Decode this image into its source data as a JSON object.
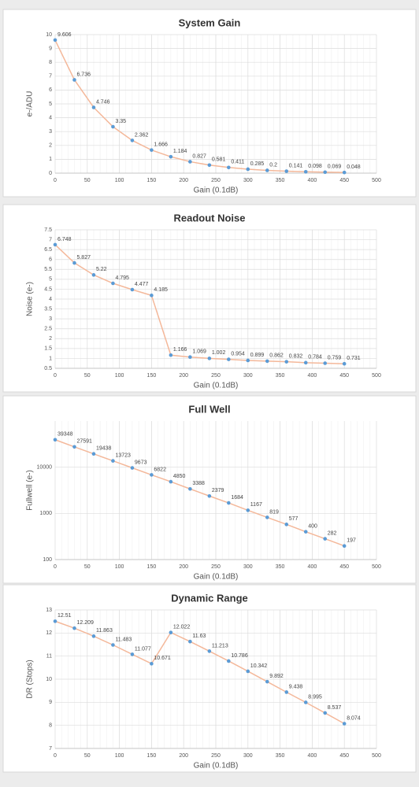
{
  "chart_data": [
    {
      "type": "line",
      "title": "System Gain",
      "x_label": "Gain (0.1dB)",
      "y_label": "e-/ADU",
      "x": [
        0,
        30,
        60,
        90,
        120,
        150,
        180,
        210,
        240,
        270,
        300,
        330,
        360,
        390,
        420,
        450
      ],
      "values": [
        9.606,
        6.736,
        4.746,
        3.35,
        2.362,
        1.666,
        1.184,
        0.827,
        0.581,
        0.411,
        0.285,
        0.2,
        0.141,
        0.098,
        0.069,
        0.048
      ],
      "color": "#f4b89a",
      "marker_color": "#5b9bd5",
      "grid": true,
      "log_y": false,
      "xlim": [
        0,
        500
      ],
      "xticks": [
        0,
        50,
        100,
        150,
        200,
        250,
        300,
        350,
        400,
        450,
        500
      ],
      "ylim": [
        0,
        10
      ],
      "yticks": [
        0,
        1,
        2,
        3,
        4,
        5,
        6,
        7,
        8,
        9,
        10
      ]
    },
    {
      "type": "line",
      "title": "Readout Noise",
      "x_label": "Gain (0.1dB)",
      "y_label": "Noise (e-)",
      "x": [
        0,
        30,
        60,
        90,
        120,
        150,
        180,
        210,
        240,
        270,
        300,
        330,
        360,
        390,
        420,
        450
      ],
      "values": [
        6.748,
        5.827,
        5.22,
        4.795,
        4.477,
        4.185,
        1.166,
        1.069,
        1.002,
        0.954,
        0.899,
        0.862,
        0.832,
        0.784,
        0.759,
        0.731
      ],
      "color": "#f4b89a",
      "marker_color": "#5b9bd5",
      "grid": true,
      "log_y": false,
      "xlim": [
        0,
        500
      ],
      "xticks": [
        0,
        50,
        100,
        150,
        200,
        250,
        300,
        350,
        400,
        450,
        500
      ],
      "ylim": [
        0.5,
        7.5
      ],
      "yticks": [
        0.5,
        1,
        1.5,
        2,
        2.5,
        3,
        3.5,
        4,
        4.5,
        5,
        5.5,
        6,
        6.5,
        7,
        7.5
      ]
    },
    {
      "type": "line",
      "title": "Full Well",
      "x_label": "Gain (0.1dB)",
      "y_label": "Fullwell (e-)",
      "x": [
        0,
        30,
        60,
        90,
        120,
        150,
        180,
        210,
        240,
        270,
        300,
        330,
        360,
        390,
        420,
        450
      ],
      "values": [
        39348,
        27591,
        19438,
        13723,
        9673,
        6822,
        4850,
        3388,
        2379,
        1684,
        1167,
        819,
        577,
        400,
        282,
        197
      ],
      "color": "#f4b89a",
      "marker_color": "#5b9bd5",
      "grid": true,
      "log_y": true,
      "xlim": [
        0,
        500
      ],
      "xticks": [
        0,
        50,
        100,
        150,
        200,
        250,
        300,
        350,
        400,
        450,
        500
      ],
      "ylim": [
        100,
        100000
      ],
      "yticks": [
        100,
        1000,
        10000
      ]
    },
    {
      "type": "line",
      "title": "Dynamic Range",
      "x_label": "Gain (0.1dB)",
      "y_label": "DR (Stops)",
      "x": [
        0,
        30,
        60,
        90,
        120,
        150,
        180,
        210,
        240,
        270,
        300,
        330,
        360,
        390,
        420,
        450
      ],
      "values": [
        12.51,
        12.209,
        11.863,
        11.483,
        11.077,
        10.671,
        12.022,
        11.63,
        11.213,
        10.786,
        10.342,
        9.892,
        9.438,
        8.995,
        8.537,
        8.074
      ],
      "color": "#f4b89a",
      "marker_color": "#5b9bd5",
      "grid": true,
      "log_y": false,
      "xlim": [
        0,
        500
      ],
      "xticks": [
        0,
        50,
        100,
        150,
        200,
        250,
        300,
        350,
        400,
        450,
        500
      ],
      "ylim": [
        7,
        13
      ],
      "yticks": [
        7,
        8,
        9,
        10,
        11,
        12,
        13
      ]
    }
  ]
}
